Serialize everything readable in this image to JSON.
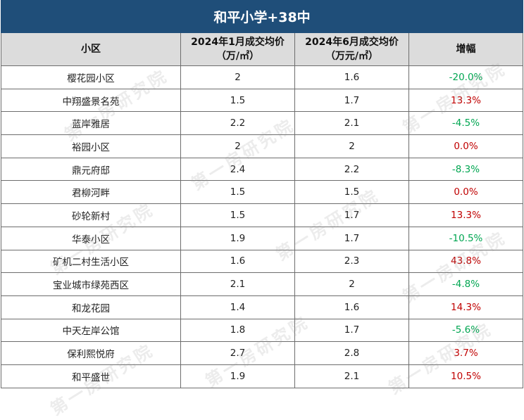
{
  "title": "和平小学+38中",
  "headers": {
    "community": "小区",
    "jan_line1": "2024年1月成交均价",
    "jan_line2": "（万/㎡）",
    "jun_line1": "2024年6月成交均价",
    "jun_line2": "（万元/㎡）",
    "change": "增幅"
  },
  "rows": [
    {
      "name": "樱花园小区",
      "jan": "2",
      "jun": "1.6",
      "change": "-20.0%",
      "trend": "down"
    },
    {
      "name": "中翔盛景名苑",
      "jan": "1.5",
      "jun": "1.7",
      "change": "13.3%",
      "trend": "up"
    },
    {
      "name": "蓝岸雅居",
      "jan": "2.2",
      "jun": "2.1",
      "change": "-4.5%",
      "trend": "down"
    },
    {
      "name": "裕园小区",
      "jan": "2",
      "jun": "2",
      "change": "0.0%",
      "trend": "flat"
    },
    {
      "name": "鼎元府邸",
      "jan": "2.4",
      "jun": "2.2",
      "change": "-8.3%",
      "trend": "down"
    },
    {
      "name": "君柳河畔",
      "jan": "1.5",
      "jun": "1.5",
      "change": "0.0%",
      "trend": "flat"
    },
    {
      "name": "砂轮新村",
      "jan": "1.5",
      "jun": "1.7",
      "change": "13.3%",
      "trend": "up"
    },
    {
      "name": "华泰小区",
      "jan": "1.9",
      "jun": "1.7",
      "change": "-10.5%",
      "trend": "down"
    },
    {
      "name": "矿机二村生活小区",
      "jan": "1.6",
      "jun": "2.3",
      "change": "43.8%",
      "trend": "up"
    },
    {
      "name": "宝业城市绿苑西区",
      "jan": "2.1",
      "jun": "2",
      "change": "-4.8%",
      "trend": "down"
    },
    {
      "name": "和龙花园",
      "jan": "1.4",
      "jun": "1.6",
      "change": "14.3%",
      "trend": "up"
    },
    {
      "name": "中天左岸公馆",
      "jan": "1.8",
      "jun": "1.7",
      "change": "-5.6%",
      "trend": "down"
    },
    {
      "name": "保利熙悦府",
      "jan": "2.7",
      "jun": "2.8",
      "change": "3.7%",
      "trend": "up"
    },
    {
      "name": "和平盛世",
      "jan": "1.9",
      "jun": "2.1",
      "change": "10.5%",
      "trend": "up"
    }
  ],
  "colors": {
    "title_bg": "#1f4e79",
    "header_bg": "#dcdcdc",
    "increase": "#c00000",
    "decrease": "#00a651"
  },
  "watermark": "第一房研究院"
}
